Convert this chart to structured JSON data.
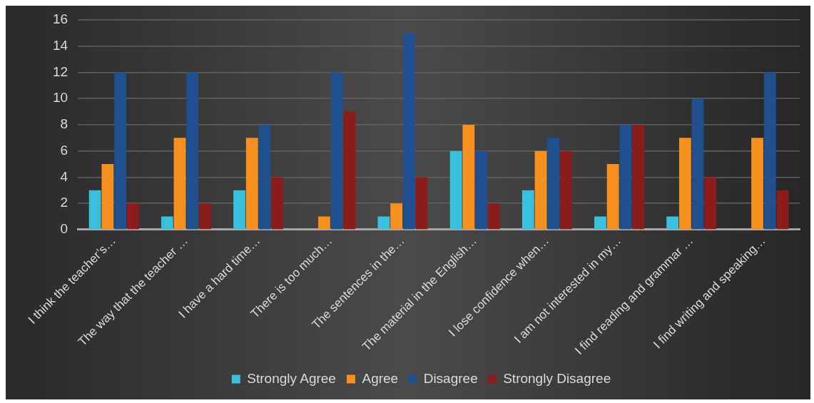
{
  "chart_data": {
    "type": "bar",
    "categories": [
      "I think the teacher’s…",
      "The way that the teacher …",
      "I have a hard time…",
      "There is too much…",
      "The sentences in the…",
      "The material in the English…",
      "I lose confidence when…",
      "I am not interested in my…",
      "I find reading and grammar …",
      "I find writing and speaking…"
    ],
    "series": [
      {
        "name": "Strongly Agree",
        "color": "#38c0dc",
        "values": [
          3,
          1,
          3,
          0,
          1,
          6,
          3,
          1,
          1,
          0
        ]
      },
      {
        "name": "Agree",
        "color": "#f7901e",
        "values": [
          5,
          7,
          7,
          1,
          2,
          8,
          6,
          5,
          7,
          7
        ]
      },
      {
        "name": "Disagree",
        "color": "#1f4f8f",
        "values": [
          12,
          12,
          8,
          12,
          15,
          6,
          7,
          8,
          10,
          12
        ]
      },
      {
        "name": "Strongly Disagree",
        "color": "#8b1c1c",
        "values": [
          2,
          2,
          4,
          9,
          4,
          2,
          6,
          8,
          4,
          3
        ]
      }
    ],
    "ylim": [
      0,
      16
    ],
    "yticks": [
      0,
      2,
      4,
      6,
      8,
      10,
      12,
      14,
      16
    ],
    "grid": "y",
    "legend": "bottom"
  }
}
